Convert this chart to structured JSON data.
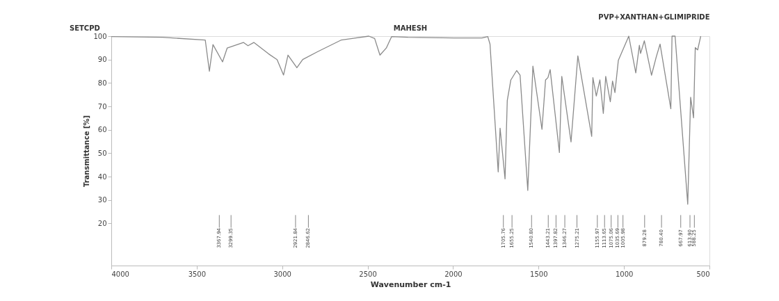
{
  "chart_data": {
    "type": "line",
    "title": "PVP+XANTHAN+GLIMIPRIDE",
    "xlabel": "Wavenumber cm-1",
    "ylabel": "Transmittance [%]",
    "annotations": [
      "SETCPD",
      "MAHESH",
      "3367.94",
      "3299.35",
      "2921.84",
      "2846.62",
      "1705.76",
      "1655.25",
      "1540.80",
      "1443.21",
      "1397.82",
      "1346.27",
      "1275.21",
      "1155.97",
      "1113.65",
      "1075.06",
      "1035.69",
      "1005.98",
      "879.28",
      "780.40",
      "667.97",
      "613.90",
      "588.25"
    ],
    "xlim": [
      4000,
      500
    ],
    "xticks": [
      4000,
      3500,
      3000,
      2500,
      2000,
      1500,
      1000,
      500
    ],
    "ylim": [
      2,
      100
    ],
    "yticks": [
      20,
      30,
      40,
      50,
      60,
      70,
      80,
      90,
      100
    ],
    "grid": false,
    "marker": "none",
    "line_style": "solid",
    "series": [
      {
        "color": "#8a8a8a",
        "x": [
          4000,
          3700,
          3450,
          3426,
          3405,
          3349,
          3322,
          3227,
          3200,
          3166,
          3079,
          3030,
          2992,
          2966,
          2914,
          2880,
          2792,
          2656,
          2493,
          2459,
          2428,
          2391,
          2360,
          2264,
          1993,
          1831,
          1797,
          1784,
          1736,
          1725,
          1696,
          1683,
          1662,
          1628,
          1608,
          1563,
          1533,
          1480,
          1459,
          1445,
          1432,
          1378,
          1364,
          1310,
          1270,
          1189,
          1182,
          1162,
          1141,
          1121,
          1107,
          1080,
          1067,
          1053,
          1033,
          972,
          931,
          910,
          903,
          881,
          839,
          811,
          789,
          726,
          719,
          701,
          627,
          610,
          593,
          583,
          569,
          551
        ],
        "values": [
          99.8,
          99.5,
          98.3,
          85,
          96.4,
          89,
          94.9,
          97.3,
          95.9,
          97.3,
          92.4,
          90,
          83.4,
          91.9,
          86.5,
          90,
          93.4,
          98.3,
          100,
          99,
          91.9,
          94.9,
          99.8,
          99.5,
          99.2,
          99.2,
          99.8,
          96.6,
          42,
          60.7,
          39,
          72.5,
          81.3,
          85.3,
          83.3,
          34.1,
          87.2,
          60.2,
          81.3,
          82.3,
          85.7,
          50.3,
          82.8,
          54.8,
          91.6,
          57.2,
          82.3,
          74.4,
          81.3,
          67,
          82.8,
          72,
          80.8,
          75.9,
          89.7,
          100,
          84.3,
          96.1,
          92.6,
          98,
          83.3,
          91.2,
          96.6,
          69,
          100,
          100,
          28.2,
          73.9,
          65.1,
          95.1,
          94.1,
          100
        ]
      }
    ]
  }
}
